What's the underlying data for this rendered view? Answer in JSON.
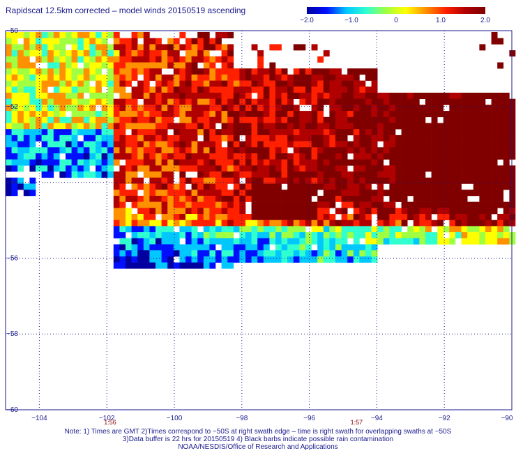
{
  "title": "Rapidscat 12.5km corrected – model winds 20150519 ascending",
  "colorbar": {
    "ticks": [
      "−2.0",
      "−1.0",
      "0",
      "1.0",
      "2.0"
    ],
    "stops": [
      "#0000a0",
      "#0010ff",
      "#00c8ff",
      "#30ffd0",
      "#a0ff40",
      "#ffff00",
      "#ff9000",
      "#ff2000",
      "#b00000",
      "#800000"
    ]
  },
  "map": {
    "lat_labels": [
      "−50",
      "−52",
      "−54",
      "−56",
      "−58",
      "−60"
    ],
    "lon_labels": [
      "−104",
      "−102",
      "−100",
      "−98",
      "−96",
      "−94",
      "−92",
      "−90"
    ],
    "time_labels": [
      {
        "text": "1:56",
        "lon": -101.9
      },
      {
        "text": "1:57",
        "lon": -94.6
      }
    ]
  },
  "notes": [
    "Note: 1) Times are GMT 2)Times correspond to −50S at right swath edge – time is right swath for overlapping swaths at −50S",
    "3)Data buffer is 22 hrs for 20150519 4) Black barbs indicate possible rain contamination",
    "NOAA/NESDIS/Office of Research and Applications"
  ]
}
